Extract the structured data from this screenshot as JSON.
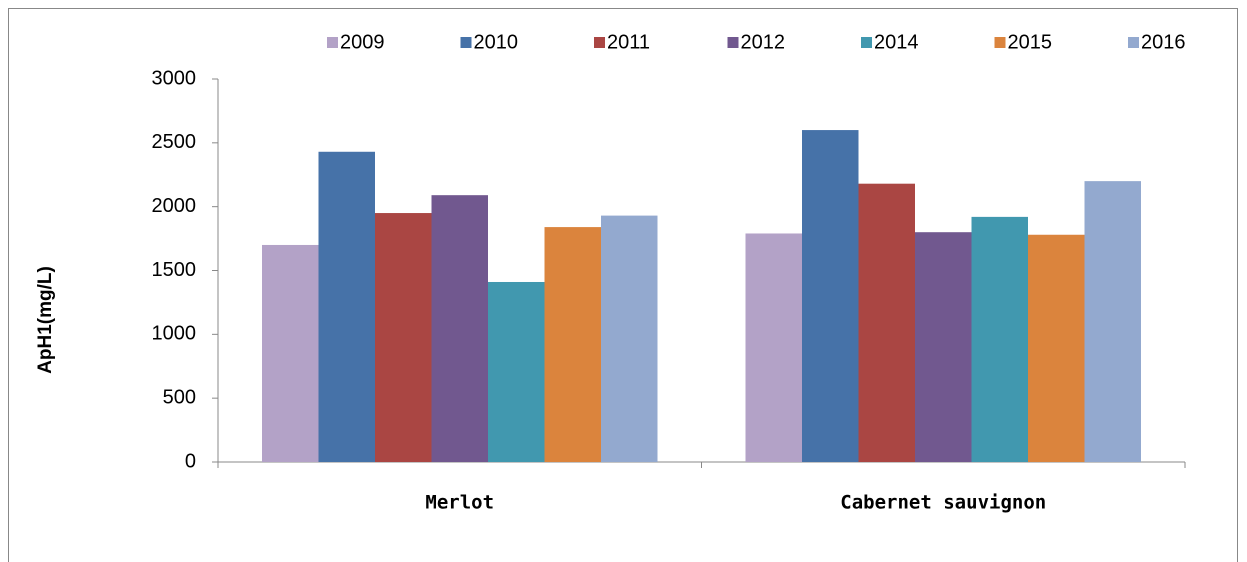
{
  "chart_data": {
    "type": "bar",
    "y_label": "ApH1(mg/L)",
    "categories": [
      "Merlot",
      "Cabernet sauvignon"
    ],
    "series": [
      {
        "name": "2009",
        "color": "#b3a2c7",
        "values": [
          1700,
          1790
        ]
      },
      {
        "name": "2010",
        "color": "#4672a8",
        "values": [
          2430,
          2600
        ]
      },
      {
        "name": "2011",
        "color": "#aa4643",
        "values": [
          1950,
          2180
        ]
      },
      {
        "name": "2012",
        "color": "#71588f",
        "values": [
          2090,
          1800
        ]
      },
      {
        "name": "2014",
        "color": "#4198af",
        "values": [
          1410,
          1920
        ]
      },
      {
        "name": "2015",
        "color": "#db843d",
        "values": [
          1840,
          1780
        ]
      },
      {
        "name": "2016",
        "color": "#93a9cf",
        "values": [
          1930,
          2200
        ]
      }
    ],
    "ylim": [
      0,
      3000
    ],
    "yticks": [
      0,
      500,
      1000,
      1500,
      2000,
      2500,
      3000
    ],
    "legend": "top"
  }
}
